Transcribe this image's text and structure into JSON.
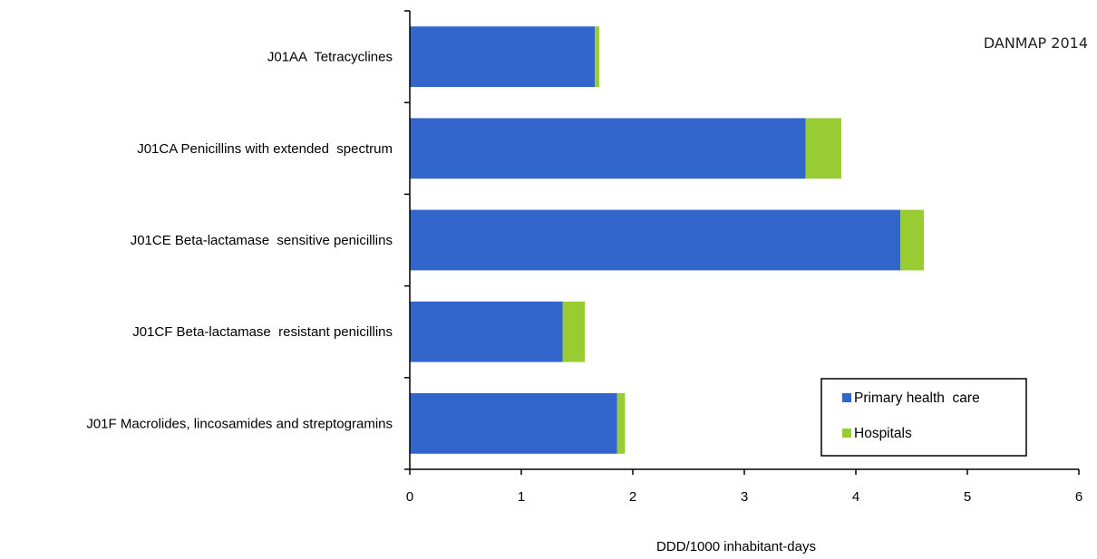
{
  "chart_data": {
    "type": "bar",
    "orientation": "horizontal",
    "stacked": true,
    "annotation": "DANMAP 2014",
    "xlabel": "DDD/1000  inhabitant-days",
    "ylabel": "",
    "xlim": [
      0,
      6
    ],
    "x_ticks": [
      "0",
      "1",
      "2",
      "3",
      "4",
      "5",
      "6"
    ],
    "grid": false,
    "legend_position": "bottom-right",
    "categories": [
      "J01AA  Tetracyclines",
      "J01CA Penicillins with extended  spectrum",
      "J01CE Beta-lactamase  sensitive penicillins",
      "J01CF Beta-lactamase  resistant penicillins",
      "J01F Macrolides, lincosamides and streptogramins"
    ],
    "series": [
      {
        "name": "Primary health  care",
        "color": "#3366cc",
        "values": [
          1.66,
          3.55,
          4.4,
          1.37,
          1.86
        ]
      },
      {
        "name": "Hospitals",
        "color": "#99cc33",
        "values": [
          0.04,
          0.32,
          0.21,
          0.2,
          0.07
        ]
      }
    ]
  }
}
